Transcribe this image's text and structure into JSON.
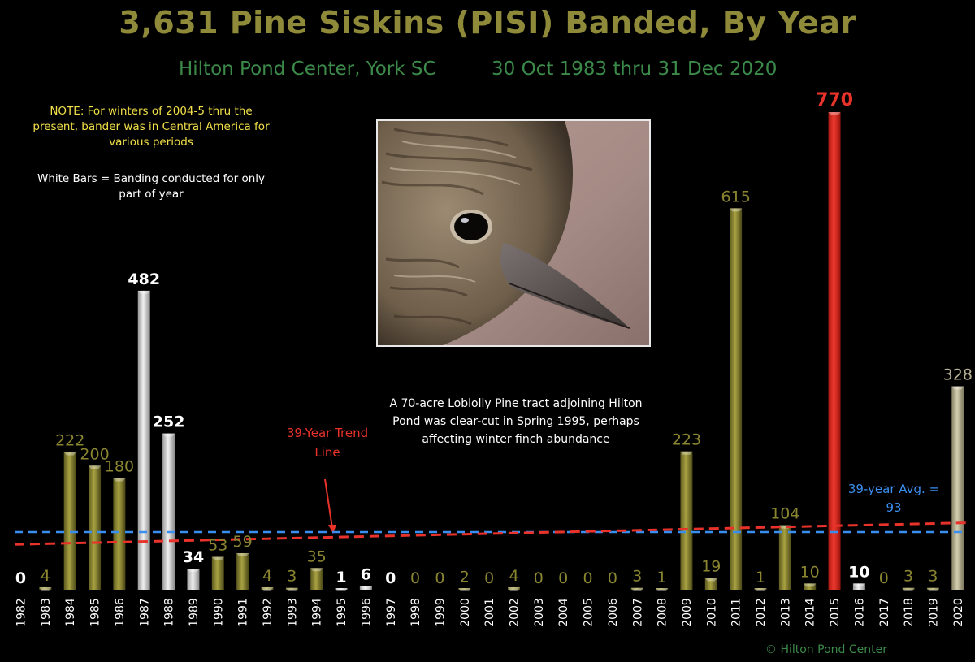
{
  "chart_data": {
    "type": "bar",
    "title": "3,631 Pine Siskins (PISI) Banded, By Year",
    "subtitle_left": "Hilton Pond Center, York SC",
    "subtitle_right": "30 Oct 1983 thru 31 Dec 2020",
    "categories": [
      "1982",
      "1983",
      "1984",
      "1985",
      "1986",
      "1987",
      "1988",
      "1989",
      "1990",
      "1991",
      "1992",
      "1993",
      "1994",
      "1995",
      "1996",
      "1997",
      "1998",
      "1999",
      "2000",
      "2001",
      "2002",
      "2003",
      "2004",
      "2005",
      "2006",
      "2007",
      "2008",
      "2009",
      "2010",
      "2011",
      "2012",
      "2013",
      "2014",
      "2015",
      "2016",
      "2017",
      "2018",
      "2019",
      "2020"
    ],
    "values": [
      0,
      4,
      222,
      200,
      180,
      482,
      252,
      34,
      53,
      59,
      4,
      3,
      35,
      1,
      6,
      0,
      0,
      0,
      2,
      0,
      4,
      0,
      0,
      0,
      0,
      3,
      1,
      223,
      19,
      615,
      1,
      104,
      10,
      770,
      10,
      0,
      3,
      3,
      328
    ],
    "bar_kind": [
      "partial",
      "olive",
      "olive",
      "olive",
      "olive",
      "partial",
      "partial",
      "partial",
      "olive",
      "olive",
      "olive",
      "olive",
      "olive",
      "partial",
      "partial",
      "partial",
      "olive",
      "olive",
      "olive",
      "olive",
      "olive",
      "olive",
      "olive",
      "olive",
      "olive",
      "olive",
      "olive",
      "olive",
      "olive",
      "olive",
      "olive",
      "olive",
      "olive",
      "record",
      "partial",
      "olive",
      "olive",
      "olive",
      "partial"
    ],
    "ylim": [
      0,
      770
    ],
    "average": 93,
    "trend": [
      73,
      108
    ],
    "colors": {
      "olive": "#8a8530",
      "partial": "#d8d8d8",
      "record": "#e02a22",
      "avg_line": "#3a8ef0",
      "trend_line": "#e8322a"
    }
  },
  "notes": {
    "note1": "NOTE: For winters of 2004-5 thru the present, bander was in Central America for various periods",
    "note2": "White Bars = Banding conducted for only part of year",
    "clearcut": "A 70-acre Loblolly Pine tract adjoining Hilton Pond was clear-cut in Spring 1995, perhaps affecting winter finch abundance",
    "trend_label": "39-Year Trend Line",
    "avg_label": "39-year Avg. = 93",
    "copyright": "© Hilton Pond Center"
  },
  "photo": {
    "subject": "pine-siskin-head-closeup"
  }
}
